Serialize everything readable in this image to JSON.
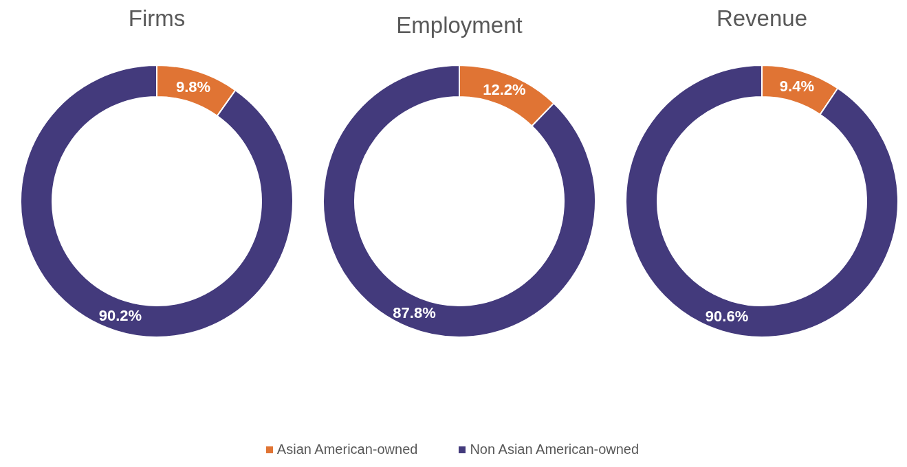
{
  "chart_data": [
    {
      "type": "donut",
      "title": "Firms",
      "categories": [
        "Asian American-owned",
        "Non Asian American-owned"
      ],
      "values": [
        9.8,
        90.2
      ],
      "value_labels": [
        "9.8%",
        "90.2%"
      ],
      "colors": [
        "#e07434",
        "#433a7c"
      ],
      "legend": "bottom"
    },
    {
      "type": "donut",
      "title": "Employment",
      "categories": [
        null,
        null
      ],
      "values": [
        12.2,
        87.8
      ],
      "value_labels": [
        "12.2%",
        "87.8%"
      ],
      "colors": [
        "#e07434",
        "#433a7c"
      ]
    },
    {
      "type": "donut",
      "title": "Revenue",
      "categories": [
        null,
        null
      ],
      "values": [
        9.4,
        90.6
      ],
      "value_labels": [
        "9.4%",
        "90.6%"
      ],
      "colors": [
        "#e07434",
        "#433a7c"
      ]
    }
  ]
}
